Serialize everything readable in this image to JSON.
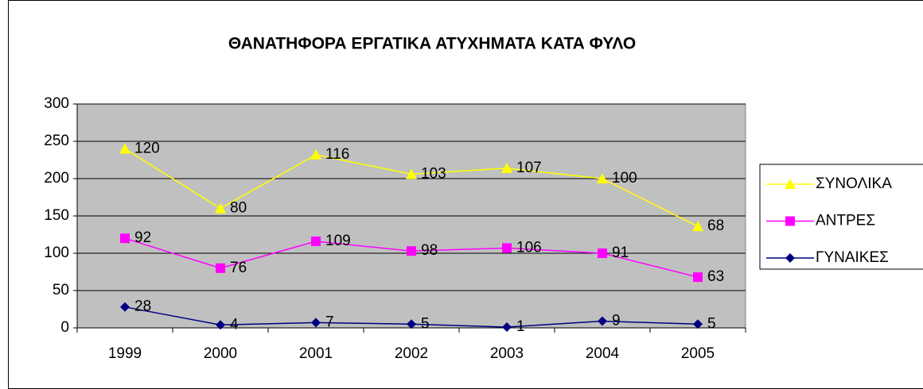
{
  "chart_data": {
    "type": "line",
    "stacked": true,
    "title": "ΘΑΝΑΤΗΦΟΡΑ ΕΡΓΑΤΙΚΑ ΑΤΥΧΗΜΑΤΑ ΚΑΤΑ ΦΥΛΟ",
    "categories": [
      "1999",
      "2000",
      "2001",
      "2002",
      "2003",
      "2004",
      "2005"
    ],
    "series": [
      {
        "name": "ΓΥΝΑΙΚΕΣ",
        "color": "#000080",
        "marker": "diamond",
        "values": [
          28,
          4,
          7,
          5,
          1,
          9,
          5
        ]
      },
      {
        "name": "ΑΝΤΡΕΣ",
        "color": "#ff00ff",
        "marker": "square",
        "values": [
          92,
          76,
          109,
          98,
          106,
          91,
          63
        ]
      },
      {
        "name": "ΣΥΝΟΛΙΚΑ",
        "color": "#ffff00",
        "marker": "triangle",
        "values": [
          120,
          80,
          116,
          103,
          107,
          100,
          68
        ]
      }
    ],
    "ylim": [
      0,
      300
    ],
    "yticks": [
      0,
      50,
      100,
      150,
      200,
      250,
      300
    ],
    "grid": true,
    "legend": "right"
  }
}
